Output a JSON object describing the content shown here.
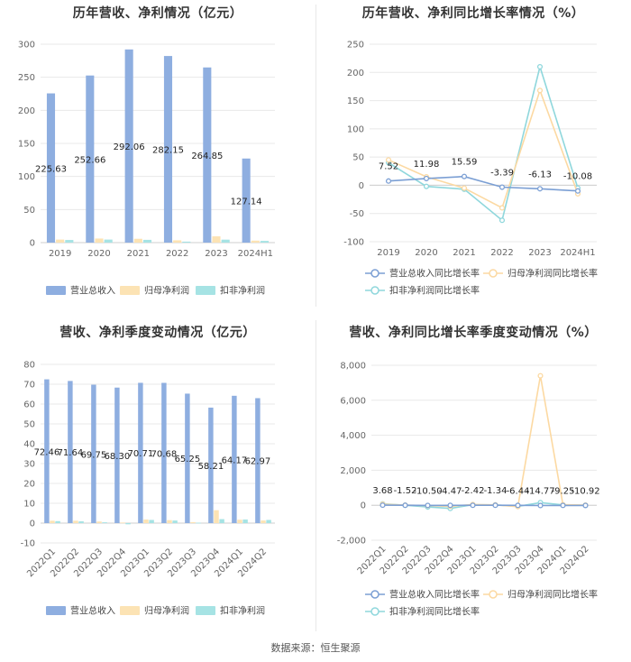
{
  "source": "数据来源：恒生聚源",
  "colors": {
    "revenue": "#8eaee0",
    "net_profit": "#fce3b4",
    "deducted_profit": "#a6e3e4",
    "revenue_line": "#7b9fd4",
    "net_line": "#fcd9a2",
    "deducted_line": "#8fd7dc",
    "grid": "#e8e8e8"
  },
  "chart_data": [
    {
      "type": "bar",
      "title": "历年营收、净利情况（亿元）",
      "categories": [
        "2019",
        "2020",
        "2021",
        "2022",
        "2023",
        "2024H1"
      ],
      "ylim": [
        0,
        300
      ],
      "yticks": [
        0,
        50,
        100,
        150,
        200,
        250,
        300
      ],
      "series": [
        {
          "name": "营业总收入",
          "values": [
            225.63,
            252.66,
            292.06,
            282.15,
            264.85,
            127.14
          ],
          "labels": [
            "225.63",
            "252.66",
            "292.06",
            "282.15",
            "264.85",
            "127.14"
          ]
        },
        {
          "name": "归母净利润",
          "values": [
            4.6,
            6.2,
            5.8,
            3.5,
            9.5,
            3.0
          ]
        },
        {
          "name": "扣非净利润",
          "values": [
            4.0,
            4.6,
            4.2,
            1.5,
            4.5,
            2.6
          ]
        }
      ],
      "legend": "bottom",
      "grid": true
    },
    {
      "type": "line",
      "title": "历年营收、净利同比增长率情况（%）",
      "categories": [
        "2019",
        "2020",
        "2021",
        "2022",
        "2023",
        "2024H1"
      ],
      "ylim": [
        -100,
        250
      ],
      "yticks": [
        -100,
        -50,
        0,
        50,
        100,
        150,
        200,
        250
      ],
      "series": [
        {
          "name": "营业总收入同比增长率",
          "values": [
            7.52,
            11.98,
            15.59,
            -3.39,
            -6.13,
            -10.08
          ],
          "labels": [
            "7.52",
            "11.98",
            "15.59",
            "-3.39",
            "-6.13",
            "-10.08"
          ]
        },
        {
          "name": "归母净利润同比增长率",
          "values": [
            45,
            15,
            -5,
            -40,
            168,
            -15
          ]
        },
        {
          "name": "扣非净利润同比增长率",
          "values": [
            40,
            -2,
            -7,
            -62,
            210,
            -5
          ]
        }
      ],
      "legend": "bottom",
      "grid": true
    },
    {
      "type": "bar",
      "title": "营收、净利季度变动情况（亿元）",
      "categories": [
        "2022Q1",
        "2022Q2",
        "2022Q3",
        "2022Q4",
        "2023Q1",
        "2023Q2",
        "2023Q3",
        "2023Q4",
        "2024Q1",
        "2024Q2"
      ],
      "ylim": [
        -10,
        80
      ],
      "yticks": [
        -10,
        0,
        10,
        20,
        30,
        40,
        50,
        60,
        70,
        80
      ],
      "series": [
        {
          "name": "营业总收入",
          "values": [
            72.46,
            71.64,
            69.75,
            68.3,
            70.71,
            70.68,
            65.25,
            58.21,
            64.17,
            62.97
          ],
          "labels": [
            "72.46",
            "71.64",
            "69.75",
            "68.30",
            "70.71",
            "70.68",
            "65.25",
            "58.21",
            "64.17",
            "62.97"
          ]
        },
        {
          "name": "归母净利润",
          "values": [
            1.2,
            1.2,
            0.8,
            0.3,
            1.8,
            1.5,
            0.5,
            6.5,
            1.7,
            1.3
          ]
        },
        {
          "name": "扣非净利润",
          "values": [
            1.0,
            0.9,
            0.4,
            -0.6,
            1.6,
            1.3,
            0.2,
            2.0,
            1.8,
            1.6
          ]
        }
      ],
      "legend": "bottom",
      "grid": true
    },
    {
      "type": "line",
      "title": "营收、净利同比增长率季度变动情况（%）",
      "categories": [
        "2022Q1",
        "2022Q2",
        "2022Q3",
        "2022Q4",
        "2023Q1",
        "2023Q2",
        "2023Q3",
        "2023Q4",
        "2024Q1",
        "2024Q2"
      ],
      "ylim": [
        -2000,
        8000
      ],
      "yticks": [
        -2000,
        0,
        2000,
        4000,
        6000,
        8000
      ],
      "ytick_labels": [
        "-2,000",
        "0",
        "2,000",
        "4,000",
        "6,000",
        "8,000"
      ],
      "series": [
        {
          "name": "营业总收入同比增长率",
          "values": [
            3.68,
            -1.52,
            -10.5,
            -4.47,
            -2.42,
            -1.34,
            -6.44,
            -14.77,
            -9.25,
            -10.92
          ],
          "labels": [
            "3.68",
            "-1.52",
            "-10.50",
            "-4.47",
            "-2.42",
            "-1.34",
            "-6.44",
            "-14.77",
            "-9.25",
            "-10.92"
          ]
        },
        {
          "name": "归母净利润同比增长率",
          "values": [
            60,
            10,
            -20,
            -60,
            40,
            20,
            -80,
            7400,
            30,
            10
          ]
        },
        {
          "name": "扣非净利润同比增长率",
          "values": [
            80,
            0,
            -100,
            -180,
            30,
            20,
            -60,
            150,
            20,
            0
          ]
        }
      ],
      "legend": "bottom",
      "grid": true
    }
  ]
}
